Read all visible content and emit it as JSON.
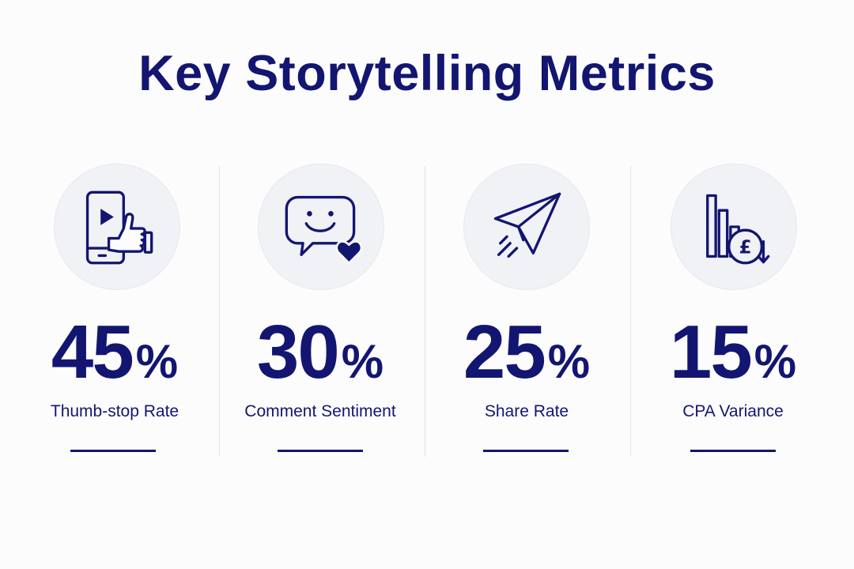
{
  "title": "Key Storytelling Metrics",
  "colors": {
    "primary": "#131670",
    "background": "#fcfcfd",
    "icon_bg": "#f1f2f6"
  },
  "metrics": [
    {
      "value": "45",
      "unit": "%",
      "label": "Thumb-stop Rate",
      "icon": "phone-video-thumbs-up-icon"
    },
    {
      "value": "30",
      "unit": "%",
      "label": "Comment Sentiment",
      "icon": "smiley-chat-heart-icon"
    },
    {
      "value": "25",
      "unit": "%",
      "label": "Share Rate",
      "icon": "paper-plane-icon"
    },
    {
      "value": "15",
      "unit": "%",
      "label": "CPA Variance",
      "icon": "bar-chart-pound-down-icon"
    }
  ]
}
